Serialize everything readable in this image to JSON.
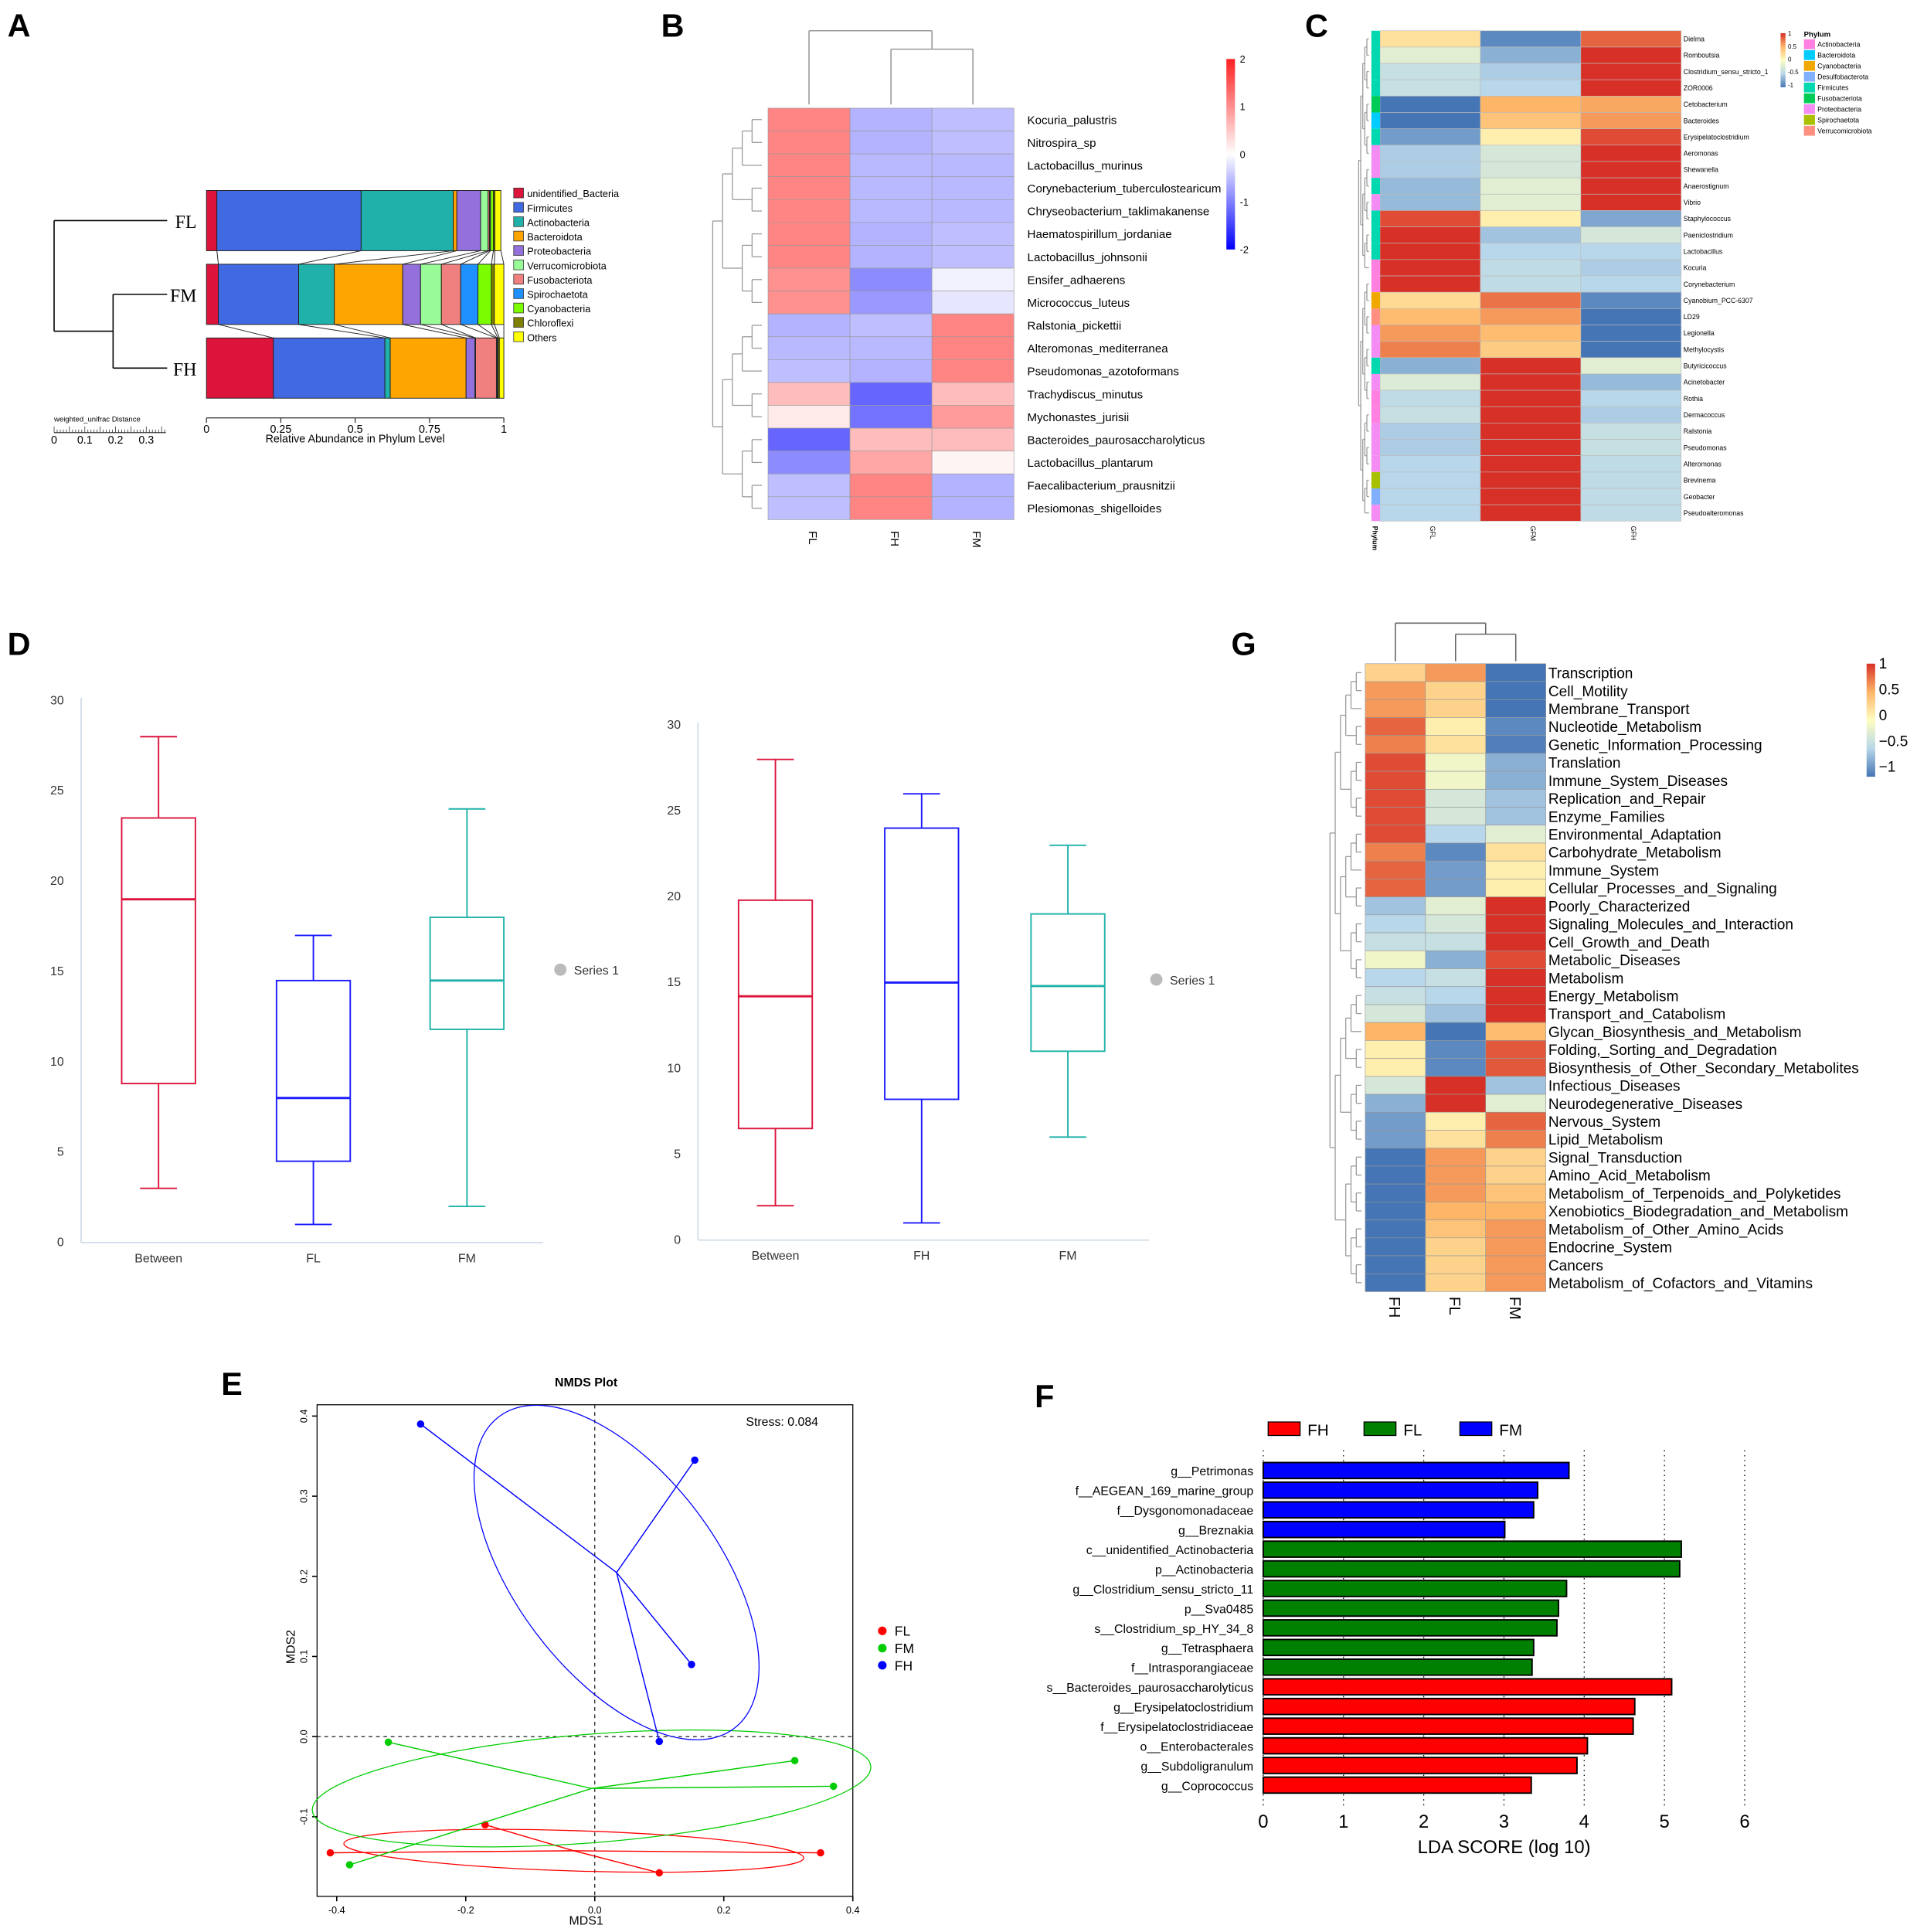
{
  "panels": [
    "A",
    "B",
    "C",
    "D",
    "G",
    "E",
    "F"
  ],
  "chart_data": [
    {
      "type": "bar",
      "subtype": "stacked-horizontal-with-dendrogram",
      "samples": [
        "FL",
        "FM",
        "FH"
      ],
      "phyla": [
        "unidentified_Bacteria",
        "Firmicutes",
        "Actinobacteria",
        "Bacteroidota",
        "Proteobacteria",
        "Verrucomicrobiota",
        "Fusobacteriota",
        "Spirochaetota",
        "Cyanobacteria",
        "Chloroflexi",
        "Others"
      ],
      "colors": [
        "#dc143c",
        "#4169e1",
        "#20b2aa",
        "#ffa500",
        "#9370db",
        "#98fb98",
        "#f08080",
        "#1e90ff",
        "#7cfc00",
        "#808000",
        "#ffff00"
      ],
      "series": [
        {
          "name": "FL",
          "values": [
            0.035,
            0.485,
            0.31,
            0.012,
            0.08,
            0.025,
            0.005,
            0.003,
            0.01,
            0.005,
            0.02
          ]
        },
        {
          "name": "FM",
          "values": [
            0.04,
            0.27,
            0.12,
            0.23,
            0.06,
            0.07,
            0.065,
            0.058,
            0.045,
            0.01,
            0.032
          ]
        },
        {
          "name": "FH",
          "values": [
            0.225,
            0.375,
            0.018,
            0.255,
            0.03,
            0.002,
            0.07,
            0.003,
            0.002,
            0.005,
            0.015
          ]
        }
      ],
      "xticks": [
        "0",
        "0.25",
        "0.5",
        "0.75",
        "1"
      ],
      "xlabel": "Relative Abundance in Phylum Level",
      "scale_title": "weighted_unifrac Distance",
      "scale_ticks": [
        "0",
        "0.1",
        "0.2",
        "0.3"
      ],
      "xlim": [
        0,
        1
      ]
    },
    {
      "type": "heatmap",
      "columns": [
        "FL",
        "FH",
        "FM"
      ],
      "rows": [
        "Kocuria_palustris",
        "Nitrospira_sp",
        "Lactobacillus_murinus",
        "Corynebacterium_tuberculostearicum",
        "Chryseobacterium_taklimakanense",
        "Haematospirillum_jordaniae",
        "Lactobacillus_johnsonii",
        "Ensifer_adhaerens",
        "Micrococcus_luteus",
        "Ralstonia_pickettii",
        "Alteromonas_mediterranea",
        "Pseudomonas_azotoformans",
        "Trachydiscus_minutus",
        "Mychonastes_jurisii",
        "Bacteroides_paurosaccharolyticus",
        "Lactobacillus_plantarum",
        "Faecalibacterium_prausnitzii",
        "Plesiomonas_shigelloides"
      ],
      "values": [
        [
          1.1,
          -0.6,
          -0.5
        ],
        [
          1.1,
          -0.6,
          -0.5
        ],
        [
          1.1,
          -0.55,
          -0.55
        ],
        [
          1.1,
          -0.55,
          -0.55
        ],
        [
          1.1,
          -0.55,
          -0.55
        ],
        [
          1.1,
          -0.6,
          -0.5
        ],
        [
          1.1,
          -0.6,
          -0.5
        ],
        [
          1.0,
          -0.9,
          -0.1
        ],
        [
          1.0,
          -0.8,
          -0.2
        ],
        [
          -0.6,
          -0.5,
          1.1
        ],
        [
          -0.55,
          -0.55,
          1.1
        ],
        [
          -0.5,
          -0.6,
          1.1
        ],
        [
          0.6,
          -1.2,
          0.6
        ],
        [
          0.2,
          -1.1,
          0.9
        ],
        [
          -1.2,
          0.6,
          0.6
        ],
        [
          -0.9,
          0.8,
          0.1
        ],
        [
          -0.5,
          1.1,
          -0.6
        ],
        [
          -0.5,
          1.1,
          -0.6
        ]
      ],
      "colorbar_ticks": [
        "2",
        "1",
        "0",
        "-1",
        "-2"
      ],
      "range": [
        -2,
        2
      ]
    },
    {
      "type": "heatmap",
      "columns": [
        "GFL",
        "GFM",
        "GFH"
      ],
      "rows": [
        "Dielma",
        "Romboutsia",
        "Clostridium_sensu_stricto_1",
        "ZOR0006",
        "Cetobacterium",
        "Bacteroides",
        "Erysipelatoclostridium",
        "Aeromonas",
        "Shewanella",
        "Anaerostignum",
        "Vibrio",
        "Staphylococcus",
        "Paeniclostridium",
        "Lactobacillus",
        "Kocuria",
        "Corynebacterium",
        "Cyanobium_PCC-6307",
        "LD29",
        "Legionella",
        "Methylocystis",
        "Butyricicoccus",
        "Acinetobacter",
        "Rothia",
        "Dermacoccus",
        "Ralstonia",
        "Pseudomonas",
        "Alteromonas",
        "Brevinema",
        "Geobacter",
        "Pseudoalteromonas"
      ],
      "row_phylum": [
        4,
        4,
        4,
        4,
        5,
        1,
        4,
        6,
        6,
        4,
        6,
        4,
        4,
        4,
        0,
        0,
        2,
        8,
        6,
        6,
        4,
        6,
        0,
        0,
        6,
        6,
        6,
        7,
        3,
        6
      ],
      "values": [
        [
          0.2,
          -0.9,
          0.8
        ],
        [
          -0.2,
          -0.7,
          1
        ],
        [
          -0.4,
          -0.55,
          1
        ],
        [
          -0.4,
          -0.5,
          1
        ],
        [
          -1,
          0.5,
          0.55
        ],
        [
          -1,
          0.4,
          0.6
        ],
        [
          -0.8,
          0.1,
          0.9
        ],
        [
          -0.55,
          -0.3,
          1
        ],
        [
          -0.55,
          -0.3,
          1
        ],
        [
          -0.65,
          -0.2,
          1
        ],
        [
          -0.65,
          -0.2,
          1
        ],
        [
          0.9,
          0.1,
          -0.75
        ],
        [
          1,
          -0.6,
          -0.3
        ],
        [
          1,
          -0.5,
          -0.5
        ],
        [
          1,
          -0.45,
          -0.55
        ],
        [
          1,
          -0.45,
          -0.5
        ],
        [
          0.25,
          0.75,
          -0.9
        ],
        [
          0.45,
          0.6,
          -1
        ],
        [
          0.6,
          0.45,
          -1
        ],
        [
          0.7,
          0.35,
          -1
        ],
        [
          -0.7,
          1,
          -0.2
        ],
        [
          -0.25,
          1,
          -0.65
        ],
        [
          -0.45,
          1,
          -0.5
        ],
        [
          -0.4,
          1,
          -0.55
        ],
        [
          -0.55,
          1,
          -0.4
        ],
        [
          -0.55,
          1,
          -0.4
        ],
        [
          -0.5,
          1,
          -0.45
        ],
        [
          -0.5,
          1,
          -0.45
        ],
        [
          -0.5,
          1,
          -0.45
        ],
        [
          -0.5,
          1,
          -0.45
        ]
      ],
      "annotation_label": "Phylum",
      "legend_title": "Phylum",
      "legend": [
        "Actinobacteria",
        "Bacteroidota",
        "Cyanobacteria",
        "Desulfobacterota",
        "Firmicutes",
        "Fusobacteriota",
        "Proteobacteria",
        "Spirochaetota",
        "Verrucomicrobiota"
      ],
      "legend_colors": [
        "#ff80e0",
        "#00ccff",
        "#f0a800",
        "#80b0ff",
        "#00d8b0",
        "#00cc55",
        "#f48cf4",
        "#a8c000",
        "#ff9080"
      ],
      "colorbar_ticks": [
        "1",
        "0.5",
        "0",
        "-0.5",
        "-1"
      ],
      "range": [
        -1,
        1
      ]
    },
    {
      "type": "box",
      "categories": [
        "Between",
        "FL",
        "FM"
      ],
      "colors": [
        "#dc143c",
        "#1a1aff",
        "#20b2aa"
      ],
      "boxes": [
        {
          "min": 3,
          "q1": 8.8,
          "median": 19,
          "q3": 23.5,
          "max": 28
        },
        {
          "min": 1,
          "q1": 4.5,
          "median": 8,
          "q3": 14.5,
          "max": 17
        },
        {
          "min": 2,
          "q1": 11.8,
          "median": 14.5,
          "q3": 18,
          "max": 24
        }
      ],
      "yticks": [
        "0",
        "5",
        "10",
        "15",
        "20",
        "25",
        "30"
      ],
      "ylim": [
        0,
        30
      ],
      "legend": "Series 1"
    },
    {
      "type": "box",
      "categories": [
        "Between",
        "FH",
        "FM"
      ],
      "colors": [
        "#dc143c",
        "#1a1aff",
        "#20b2aa"
      ],
      "boxes": [
        {
          "min": 2,
          "q1": 6.5,
          "median": 14.2,
          "q3": 19.8,
          "max": 28
        },
        {
          "min": 1,
          "q1": 8.2,
          "median": 15,
          "q3": 24,
          "max": 26
        },
        {
          "min": 6,
          "q1": 11,
          "median": 14.8,
          "q3": 19,
          "max": 23
        }
      ],
      "yticks": [
        "0",
        "5",
        "10",
        "15",
        "20",
        "25",
        "30"
      ],
      "ylim": [
        0,
        30
      ],
      "legend": "Series 1"
    },
    {
      "type": "heatmap",
      "columns": [
        "FH",
        "FL",
        "FM"
      ],
      "rows": [
        "Transcription",
        "Cell_Motility",
        "Membrane_Transport",
        "Nucleotide_Metabolism",
        "Genetic_Information_Processing",
        "Translation",
        "Immune_System_Diseases",
        "Replication_and_Repair",
        "Enzyme_Families",
        "Environmental_Adaptation",
        "Carbohydrate_Metabolism",
        "Immune_System",
        "Cellular_Processes_and_Signaling",
        "Poorly_Characterized",
        "Signaling_Molecules_and_Interaction",
        "Cell_Growth_and_Death",
        "Metabolic_Diseases",
        "Metabolism",
        "Energy_Metabolism",
        "Transport_and_Catabolism",
        "Glycan_Biosynthesis_and_Metabolism",
        "Folding,_Sorting_and_Degradation",
        "Biosynthesis_of_Other_Secondary_Metabolites",
        "Infectious_Diseases",
        "Neurodegenerative_Diseases",
        "Nervous_System",
        "Lipid_Metabolism",
        "Signal_Transduction",
        "Amino_Acid_Metabolism",
        "Metabolism_of_Terpenoids_and_Polyketides",
        "Xenobiotics_Biodegradation_and_Metabolism",
        "Metabolism_of_Other_Amino_Acids",
        "Endocrine_System",
        "Cancers",
        "Metabolism_of_Cofactors_and_Vitamins"
      ],
      "values": [
        [
          0.3,
          0.6,
          -1
        ],
        [
          0.6,
          0.3,
          -1
        ],
        [
          0.6,
          0.3,
          -1
        ],
        [
          0.8,
          0.1,
          -0.9
        ],
        [
          0.7,
          0.2,
          -0.95
        ],
        [
          0.9,
          -0.1,
          -0.7
        ],
        [
          0.9,
          -0.1,
          -0.7
        ],
        [
          0.9,
          -0.3,
          -0.6
        ],
        [
          0.9,
          -0.3,
          -0.6
        ],
        [
          0.9,
          -0.5,
          -0.2
        ],
        [
          0.7,
          -0.9,
          0.2
        ],
        [
          0.8,
          -0.8,
          0.1
        ],
        [
          0.8,
          -0.8,
          0.1
        ],
        [
          -0.6,
          -0.2,
          1
        ],
        [
          -0.5,
          -0.3,
          1
        ],
        [
          -0.4,
          -0.4,
          1
        ],
        [
          -0.1,
          -0.7,
          0.9
        ],
        [
          -0.5,
          -0.4,
          1
        ],
        [
          -0.4,
          -0.5,
          1
        ],
        [
          -0.3,
          -0.6,
          1
        ],
        [
          0.5,
          -1,
          0.45
        ],
        [
          0.1,
          -0.9,
          0.85
        ],
        [
          0.1,
          -0.9,
          0.85
        ],
        [
          -0.3,
          1,
          -0.6
        ],
        [
          -0.7,
          1,
          -0.2
        ],
        [
          -0.8,
          0.1,
          0.8
        ],
        [
          -0.8,
          0.2,
          0.7
        ],
        [
          -1,
          0.6,
          0.3
        ],
        [
          -1,
          0.6,
          0.3
        ],
        [
          -1,
          0.6,
          0.4
        ],
        [
          -1,
          0.5,
          0.5
        ],
        [
          -1,
          0.4,
          0.6
        ],
        [
          -1,
          0.3,
          0.6
        ],
        [
          -1,
          0.3,
          0.6
        ],
        [
          -1,
          0.3,
          0.6
        ]
      ],
      "colorbar_ticks": [
        "1",
        "0.5",
        "0",
        "−0.5",
        "−1"
      ],
      "range": [
        -1,
        1
      ]
    },
    {
      "type": "scatter",
      "title": "NMDS Plot",
      "stress": "Stress:  0.084",
      "xlabel": "MDS1",
      "ylabel": "MDS2",
      "xlim": [
        -0.4,
        0.4
      ],
      "ylim": [
        -0.2,
        0.4
      ],
      "xticks": [
        "-0.4",
        "-0.2",
        "0.0",
        "0.2",
        "0.4"
      ],
      "yticks": [
        "-0.1",
        "0.0",
        "0.1",
        "0.2",
        "0.3",
        "0.4"
      ],
      "series": [
        {
          "name": "FL",
          "color": "#ff0000",
          "points": [
            [
              -0.17,
              -0.11
            ],
            [
              -0.41,
              -0.145
            ],
            [
              0.35,
              -0.145
            ],
            [
              0.1,
              -0.17
            ]
          ]
        },
        {
          "name": "FM",
          "color": "#00cc00",
          "points": [
            [
              -0.32,
              -0.007
            ],
            [
              0.31,
              -0.03
            ],
            [
              0.37,
              -0.062
            ],
            [
              -0.38,
              -0.16
            ]
          ]
        },
        {
          "name": "FH",
          "color": "#0000ff",
          "points": [
            [
              -0.27,
              0.39
            ],
            [
              0.155,
              0.345
            ],
            [
              0.15,
              0.09
            ],
            [
              0.1,
              -0.006
            ]
          ]
        }
      ]
    },
    {
      "type": "bar",
      "subtype": "horizontal-LEfSe",
      "legend": [
        {
          "name": "FH",
          "color": "#ff0000"
        },
        {
          "name": "FL",
          "color": "#008000"
        },
        {
          "name": "FM",
          "color": "#0000ff"
        }
      ],
      "categories": [
        "g__Petrimonas",
        "f__AEGEAN_169_marine_group",
        "f__Dysgonomonadaceae",
        "g__Breznakia",
        "c__unidentified_Actinobacteria",
        "p__Actinobacteria",
        "g__Clostridium_sensu_stricto_11",
        "p__Sva0485",
        "s__Clostridium_sp_HY_34_8",
        "g__Tetrasphaera",
        "f__Intrasporangiaceae",
        "s__Bacteroides_paurosaccharolyticus",
        "g__Erysipelatoclostridium",
        "f__Erysipelatoclostridiaceae",
        "o__Enterobacterales",
        "g__Subdoligranulum",
        "g__Coprococcus"
      ],
      "groups": [
        2,
        2,
        2,
        2,
        1,
        1,
        1,
        1,
        1,
        1,
        1,
        0,
        0,
        0,
        0,
        0,
        0
      ],
      "values": [
        3.81,
        3.42,
        3.37,
        3.01,
        5.21,
        5.19,
        3.78,
        3.68,
        3.66,
        3.37,
        3.35,
        5.09,
        4.63,
        4.61,
        4.04,
        3.91,
        3.34
      ],
      "xticks": [
        "0",
        "1",
        "2",
        "3",
        "4",
        "5",
        "6"
      ],
      "xlim": [
        0,
        6
      ],
      "xlabel": "LDA SCORE (log 10)"
    }
  ]
}
